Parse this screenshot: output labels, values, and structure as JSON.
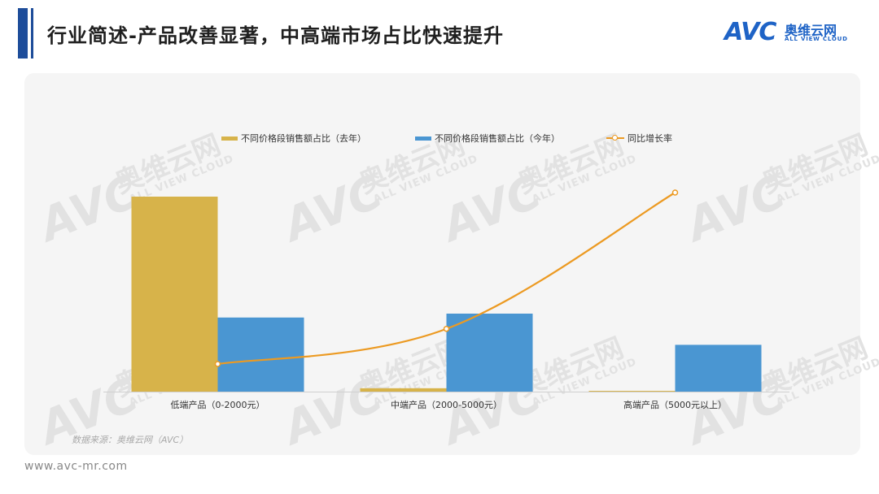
{
  "header": {
    "title": "行业简述-产品改善显著，中高端市场占比快速提升"
  },
  "logo": {
    "mark": "AVC",
    "name_cn": "奥维云网",
    "name_en": "ALL VIEW CLOUD"
  },
  "watermark": {
    "mark": "AVC",
    "name_cn": "奥维云网",
    "name_en": "ALL VIEW CLOUD"
  },
  "chart_data": {
    "type": "bar",
    "categories": [
      "低端产品（0-2000元）",
      "中端产品（2000-5000元）",
      "高端产品（5000元以上）"
    ],
    "series": [
      {
        "name": "不同价格段销售额占比（去年）",
        "type": "bar",
        "color": "#d7b34a",
        "values": [
          75,
          1.3,
          0.3
        ]
      },
      {
        "name": "不同价格段销售额占比（今年）",
        "type": "bar",
        "color": "#4a96d2",
        "values": [
          28.5,
          30,
          18
        ]
      },
      {
        "name": "同比增长率",
        "type": "line",
        "color": "#ec9a22",
        "values": [
          -0.5,
          0.3,
          3.4
        ]
      }
    ],
    "legend_position": "top-center",
    "grid": false,
    "axes_labels_shown": false
  },
  "source": "数据来源：奥维云网（AVC）",
  "footer": {
    "url": "www.avc-mr.com"
  }
}
